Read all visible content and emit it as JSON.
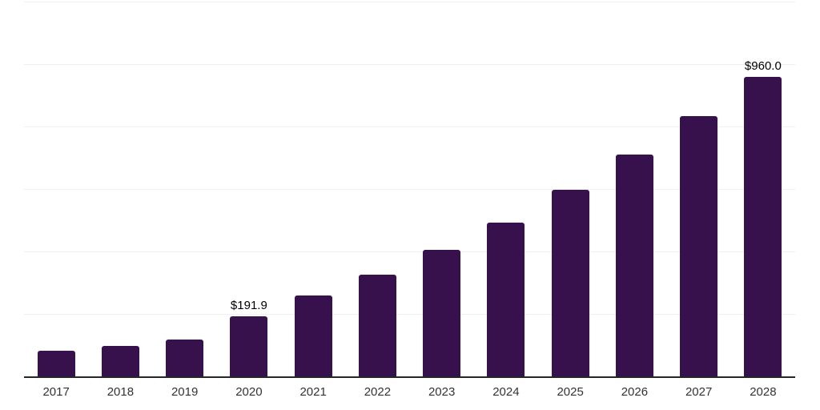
{
  "chart_data": {
    "type": "bar",
    "title": "",
    "xlabel": "",
    "ylabel": "",
    "categories": [
      "2017",
      "2018",
      "2019",
      "2020",
      "2021",
      "2022",
      "2023",
      "2024",
      "2025",
      "2026",
      "2027",
      "2028"
    ],
    "values": [
      82,
      97,
      117,
      191.9,
      260,
      325,
      405,
      493,
      597,
      711,
      833,
      960
    ],
    "data_labels": [
      "",
      "",
      "",
      "$191.9",
      "",
      "",
      "",
      "",
      "",
      "",
      "",
      "$960.0"
    ],
    "ylim": [
      0,
      1200
    ],
    "gridline_step": 200,
    "y_tick_labels_visible": false,
    "grid": "horizontal-only",
    "legend": "none",
    "bar_color": "#36114B",
    "axis_line_color": "#262626",
    "gridline_color": "#F0F0F0",
    "tick_label_color": "#333333",
    "data_label_color": "#000000"
  }
}
